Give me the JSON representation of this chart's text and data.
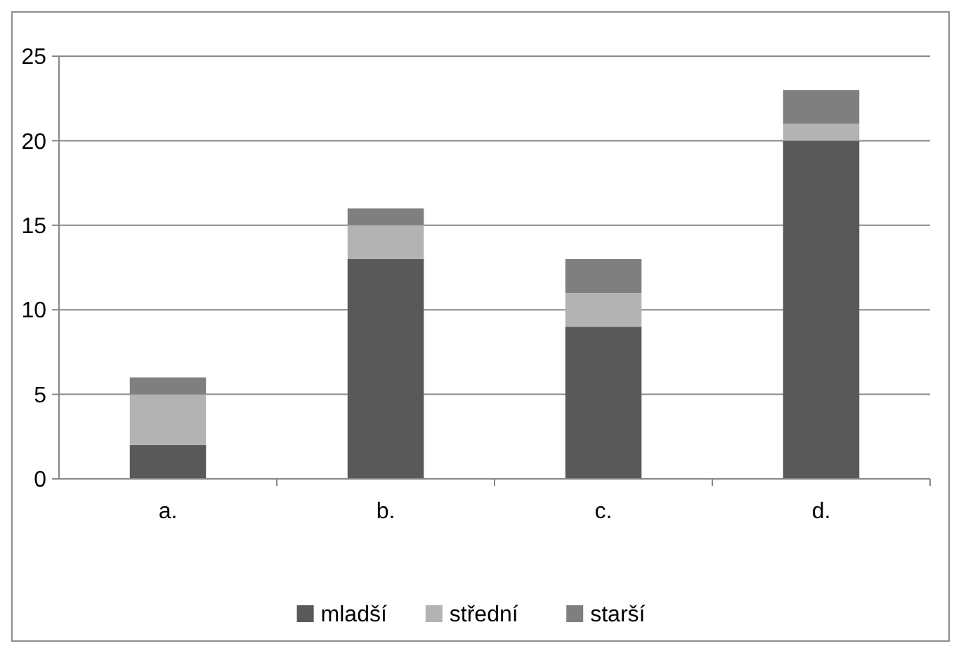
{
  "chart_data": {
    "type": "bar",
    "stacked": true,
    "categories": [
      "a.",
      "b.",
      "c.",
      "d."
    ],
    "series": [
      {
        "name": "mladší",
        "color": "#595959",
        "values": [
          2,
          13,
          9,
          20
        ]
      },
      {
        "name": "střední",
        "color": "#b3b3b3",
        "values": [
          3,
          2,
          2,
          1
        ]
      },
      {
        "name": "starší",
        "color": "#7f7f7f",
        "values": [
          1,
          1,
          2,
          2
        ]
      }
    ],
    "ylim": [
      0,
      25
    ],
    "yticks": [
      0,
      5,
      10,
      15,
      20,
      25
    ],
    "grid": "y",
    "legend": "bottom"
  }
}
